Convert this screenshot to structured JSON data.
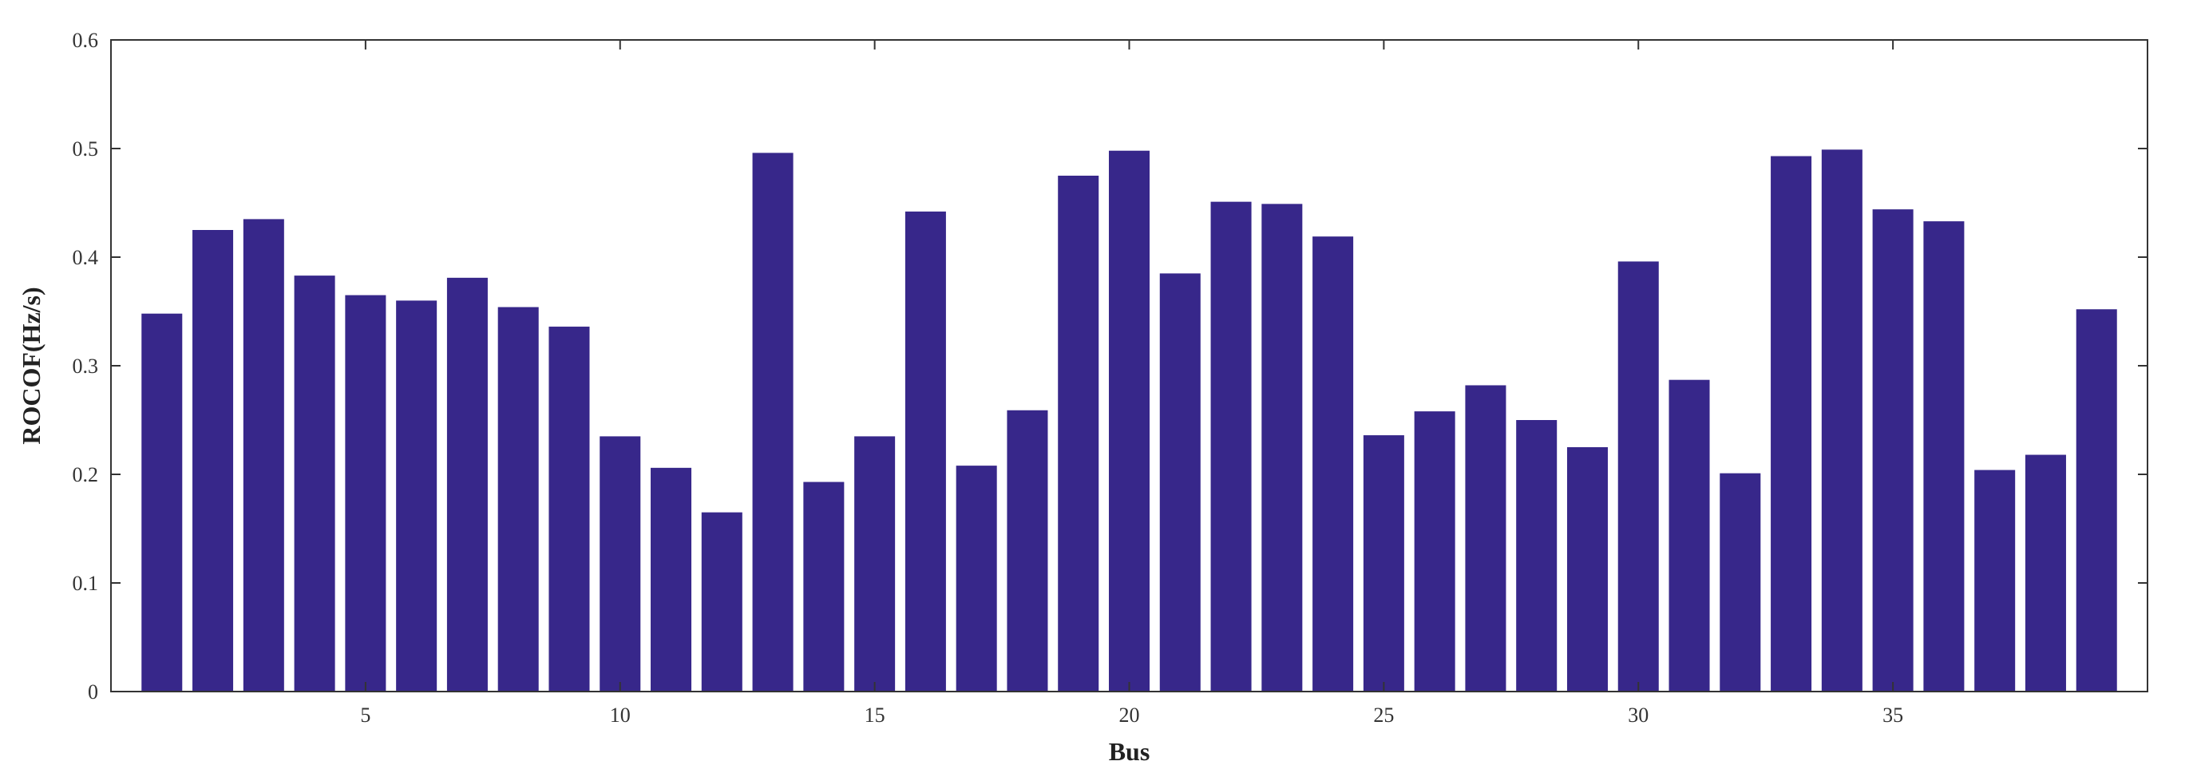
{
  "chart_data": {
    "type": "bar",
    "xlabel": "Bus",
    "ylabel": "ROCOF(Hz/s)",
    "ylim": [
      0,
      0.6
    ],
    "yticks": [
      0,
      0.1,
      0.2,
      0.3,
      0.4,
      0.5,
      0.6
    ],
    "ytick_labels": [
      "0",
      "0.1",
      "0.2",
      "0.3",
      "0.4",
      "0.5",
      "0.6"
    ],
    "xlim": [
      0,
      40
    ],
    "xticks": [
      5,
      10,
      15,
      20,
      25,
      30,
      35
    ],
    "xtick_labels": [
      "5",
      "10",
      "15",
      "20",
      "25",
      "30",
      "35"
    ],
    "bar_color": "#37278a",
    "grid": false,
    "x": [
      1,
      2,
      3,
      4,
      5,
      6,
      7,
      8,
      9,
      10,
      11,
      12,
      13,
      14,
      15,
      16,
      17,
      18,
      19,
      20,
      21,
      22,
      23,
      24,
      25,
      26,
      27,
      28,
      29,
      30,
      31,
      32,
      33,
      34,
      35,
      36,
      37,
      38,
      39
    ],
    "values": [
      0.348,
      0.425,
      0.435,
      0.383,
      0.365,
      0.36,
      0.381,
      0.354,
      0.336,
      0.235,
      0.206,
      0.165,
      0.496,
      0.193,
      0.235,
      0.442,
      0.208,
      0.259,
      0.475,
      0.498,
      0.385,
      0.451,
      0.449,
      0.419,
      0.236,
      0.258,
      0.282,
      0.25,
      0.225,
      0.396,
      0.287,
      0.201,
      0.493,
      0.499,
      0.444,
      0.433,
      0.204,
      0.218,
      0.352
    ]
  }
}
